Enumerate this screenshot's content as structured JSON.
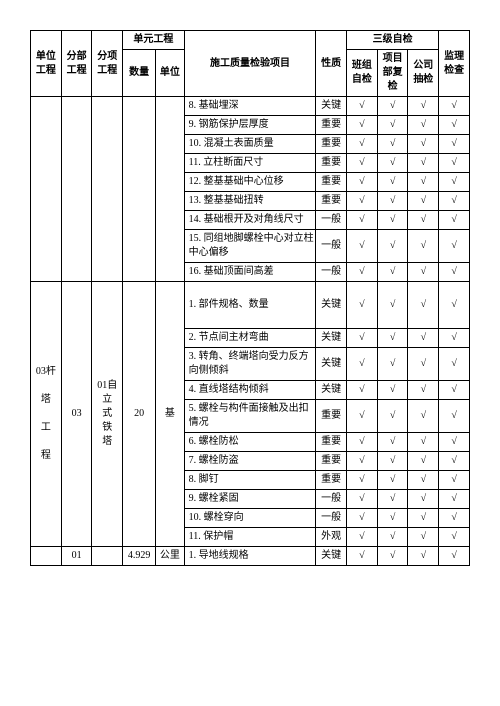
{
  "header": {
    "unit_proj": "单位工程",
    "sub_proj": "分部工程",
    "item_proj": "分项工程",
    "unit_eng": "单元工程",
    "qty": "数量",
    "unit": "单位",
    "insp_item": "施工质量检验项目",
    "nature": "性质",
    "lvl3": "三级自检",
    "team": "班组自检",
    "dept": "项目部复检",
    "company": "公司抽检",
    "supervise": "监理检查"
  },
  "side": {
    "l1": "03杆",
    "l2": "塔",
    "l3": "工",
    "l4": "程",
    "c1": "03",
    "d1": "01自",
    "d2": "立",
    "d3": "式",
    "d4": "铁",
    "d5": "塔",
    "qty": "20",
    "u": "基",
    "c2": "01",
    "qty2": "4.929",
    "u2": "公里"
  },
  "rows": [
    {
      "n": "8.",
      "t": "基础埋深",
      "q": "关键"
    },
    {
      "n": "9.",
      "t": "钢筋保护层厚度",
      "q": "重要"
    },
    {
      "n": "10.",
      "t": "混凝土表面质量",
      "q": "重要"
    },
    {
      "n": "11.",
      "t": "立柱断面尺寸",
      "q": "重要"
    },
    {
      "n": "12.",
      "t": "整基基础中心位移",
      "q": "重要"
    },
    {
      "n": "13.",
      "t": "整基基础扭转",
      "q": "重要"
    },
    {
      "n": "14.",
      "t": "基础根开及对角线尺寸",
      "q": "一般"
    },
    {
      "n": "15.",
      "t": "同组地脚螺栓中心对立柱中心偏移",
      "q": "一般"
    },
    {
      "n": "16.",
      "t": "基础顶面间高差",
      "q": "一般"
    },
    {
      "n": "1.",
      "t": "部件规格、数量",
      "q": "关键"
    },
    {
      "n": "2.",
      "t": "节点间主材弯曲",
      "q": "关键"
    },
    {
      "n": "3.",
      "t": "转角、终端塔向受力反方向侧倾斜",
      "q": "关键"
    },
    {
      "n": "4.",
      "t": "直线塔结构倾斜",
      "q": "关键"
    },
    {
      "n": "5.",
      "t": "螺栓与构件面接触及出扣情况",
      "q": "重要"
    },
    {
      "n": "6.",
      "t": "螺栓防松",
      "q": "重要"
    },
    {
      "n": "7.",
      "t": "螺栓防盗",
      "q": "重要"
    },
    {
      "n": "8.",
      "t": "脚钉",
      "q": "重要"
    },
    {
      "n": "9.",
      "t": "螺栓紧固",
      "q": "一般"
    },
    {
      "n": "10.",
      "t": "螺栓穿向",
      "q": "一般"
    },
    {
      "n": "11.",
      "t": "保护帽",
      "q": "外观"
    },
    {
      "n": "1.",
      "t": "导地线规格",
      "q": "关键"
    }
  ],
  "tick": "√"
}
